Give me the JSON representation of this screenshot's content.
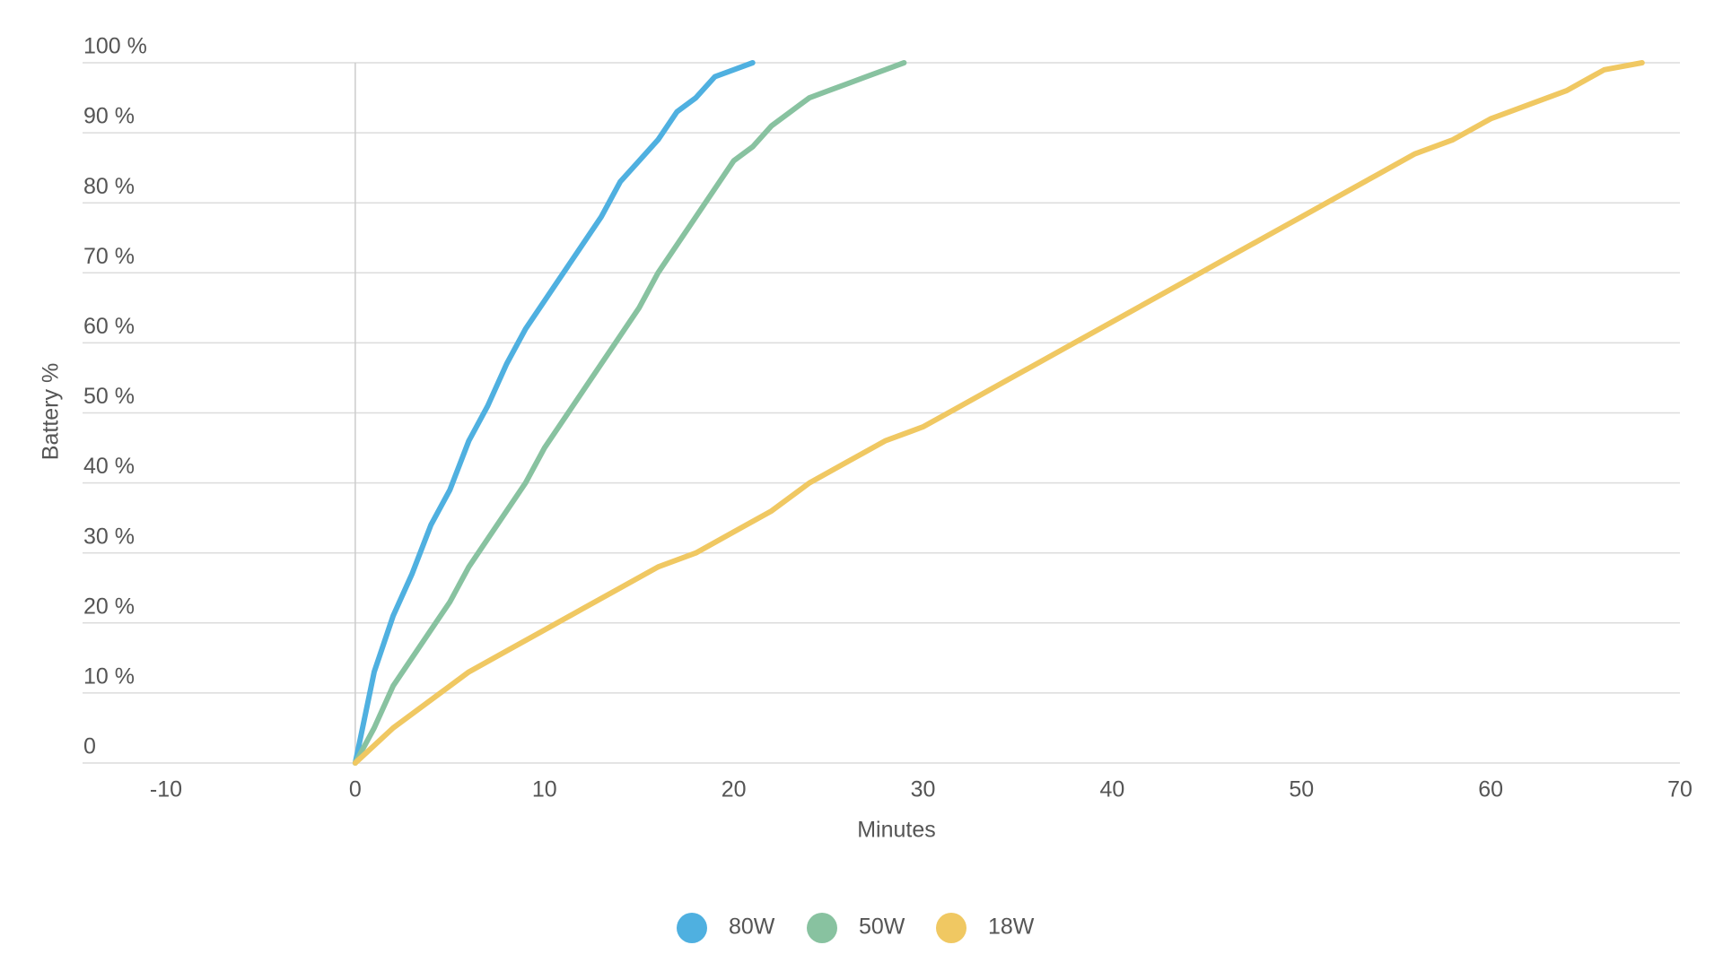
{
  "chart_data": {
    "type": "line",
    "x_label": "Minutes",
    "y_label": "Battery %",
    "xlim": [
      -10,
      70
    ],
    "xticks": [
      -10,
      0,
      10,
      20,
      30,
      40,
      50,
      60,
      70
    ],
    "ylim": [
      0,
      100
    ],
    "yticks": [
      0,
      {
        "value": 10,
        "label": "10 %"
      },
      {
        "value": 20,
        "label": "20 %"
      },
      {
        "value": 30,
        "label": "30 %"
      },
      {
        "value": 40,
        "label": "40 %"
      },
      {
        "value": 50,
        "label": "50 %"
      },
      {
        "value": 60,
        "label": "60 %"
      },
      {
        "value": 70,
        "label": "70 %"
      },
      {
        "value": 80,
        "label": "80 %"
      },
      {
        "value": 90,
        "label": "90 %"
      },
      {
        "value": 100,
        "label": "100 %"
      }
    ],
    "grid": true,
    "legend": "bottom",
    "series": [
      {
        "name": "80W",
        "color": "#4fb0e0",
        "x": [
          0,
          1,
          2,
          3,
          4,
          5,
          6,
          7,
          8,
          9,
          10,
          11,
          12,
          13,
          14,
          15,
          16,
          17,
          18,
          19,
          20,
          21
        ],
        "values": [
          0,
          13,
          21,
          27,
          34,
          39,
          46,
          51,
          57,
          62,
          66,
          70,
          74,
          78,
          83,
          86,
          89,
          93,
          95,
          98,
          99,
          100
        ]
      },
      {
        "name": "50W",
        "color": "#88c2a0",
        "x": [
          0,
          1,
          2,
          3,
          4,
          5,
          6,
          7,
          8,
          9,
          10,
          11,
          12,
          13,
          14,
          15,
          16,
          17,
          18,
          19,
          20,
          21,
          22,
          23,
          24,
          25,
          26,
          27,
          28,
          29
        ],
        "values": [
          0,
          5,
          11,
          15,
          19,
          23,
          28,
          32,
          36,
          40,
          45,
          49,
          53,
          57,
          61,
          65,
          70,
          74,
          78,
          82,
          86,
          88,
          91,
          93,
          95,
          96,
          97,
          98,
          99,
          100
        ]
      },
      {
        "name": "18W",
        "color": "#f0c862",
        "x": [
          0,
          2,
          4,
          6,
          8,
          10,
          12,
          14,
          16,
          18,
          20,
          22,
          24,
          26,
          28,
          30,
          32,
          34,
          36,
          38,
          40,
          42,
          44,
          46,
          48,
          50,
          52,
          54,
          56,
          58,
          60,
          62,
          64,
          66,
          68
        ],
        "values": [
          0,
          5,
          9,
          13,
          16,
          19,
          22,
          25,
          28,
          30,
          33,
          36,
          40,
          43,
          46,
          48,
          51,
          54,
          57,
          60,
          63,
          66,
          69,
          72,
          75,
          78,
          81,
          84,
          87,
          89,
          92,
          94,
          96,
          99,
          100
        ]
      }
    ]
  }
}
